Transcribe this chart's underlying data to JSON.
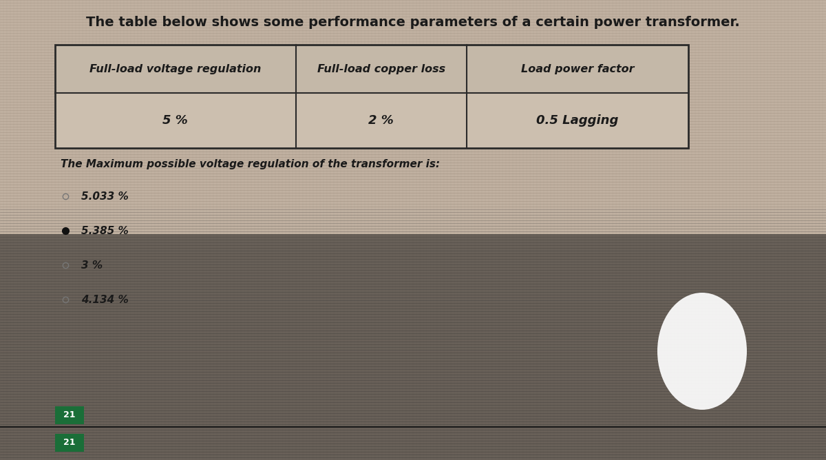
{
  "title": "The table below shows some performance parameters of a certain power transformer.",
  "table_headers": [
    "Full-load voltage regulation",
    "Full-load copper loss",
    "Load power factor"
  ],
  "table_values": [
    "5 %",
    "2 %",
    "0.5 Lagging"
  ],
  "question": "The Maximum possible voltage regulation of the transformer is:",
  "options": [
    "5.033 %",
    "5.385 %",
    "3 %",
    "4.134 %"
  ],
  "selected_option_index": 1,
  "bg_color_top": "#c8b8a8",
  "bg_color_bottom": "#706058",
  "table_bg_header": "#c0b4a4",
  "table_bg_data": "#c8bcac",
  "table_border": "#2a2a2a",
  "text_color": "#1a1a1a",
  "question_color": "#1a1a1a",
  "option_color": "#1a1a1a",
  "selected_bullet_color": "#111111",
  "bottom_bar_color": "#1a6e38",
  "bottom_bar_text": "21",
  "circle_color": "#ffffff",
  "scanline_color_top": "#9a8878",
  "scanline_color_bottom": "#403830",
  "fig_width": 12.0,
  "fig_height": 6.68
}
